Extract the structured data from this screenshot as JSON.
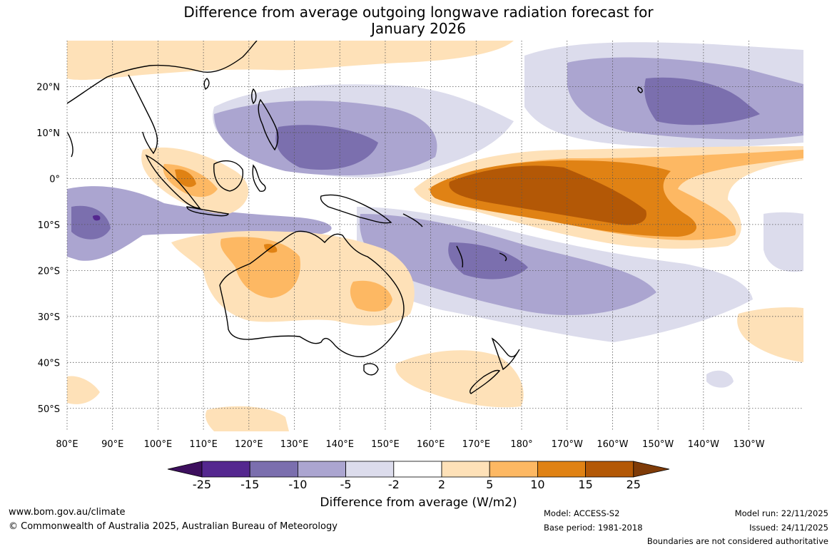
{
  "title_line1": "Difference from average outgoing longwave radiation forecast for",
  "title_line2": "January 2026",
  "map": {
    "lon_ticks": [
      "80°E",
      "90°E",
      "100°E",
      "110°E",
      "120°E",
      "130°E",
      "140°E",
      "150°E",
      "160°E",
      "170°E",
      "180°",
      "170°W",
      "160°W",
      "150°W",
      "140°W",
      "130°W"
    ],
    "lat_ticks": [
      "20°N",
      "10°N",
      "0°",
      "10°S",
      "20°S",
      "30°S",
      "40°S",
      "50°S"
    ],
    "lon_range": [
      80,
      242
    ],
    "lat_range": [
      -55,
      30
    ]
  },
  "colorbar": {
    "levels": [
      "-25",
      "-15",
      "-10",
      "-5",
      "-2",
      "2",
      "5",
      "10",
      "15",
      "25"
    ],
    "colors": [
      "#3d0f5e",
      "#54278f",
      "#7b6fae",
      "#aba5d0",
      "#dcdcec",
      "#ffffff",
      "#fee1b8",
      "#fdb863",
      "#e08214",
      "#b35806",
      "#7f3b08"
    ],
    "label": "Difference from average (W/m2)"
  },
  "footer": {
    "website": "www.bom.gov.au/climate",
    "copyright": "© Commonwealth of Australia 2025, Australian Bureau of Meteorology",
    "model": "Model: ACCESS-S2",
    "base_period": "Base period: 1981-2018",
    "model_run": "Model run: 22/11/2025",
    "issued": "Issued: 24/11/2025",
    "disclaimer": "Boundaries are not considered authoritative"
  }
}
